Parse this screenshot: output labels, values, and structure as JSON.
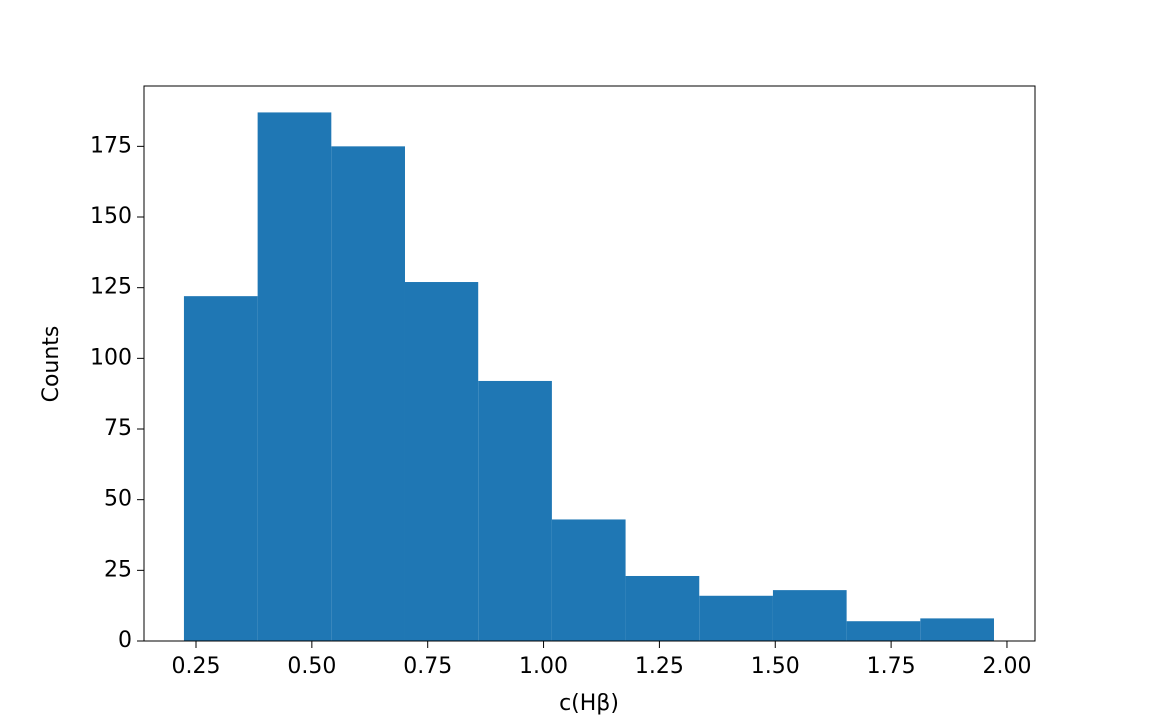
{
  "chart_data": {
    "type": "histogram",
    "bins": [
      0.224,
      0.383,
      0.542,
      0.701,
      0.859,
      1.018,
      1.177,
      1.336,
      1.495,
      1.654,
      1.813,
      1.972
    ],
    "values": [
      122,
      187,
      175,
      127,
      92,
      43,
      23,
      16,
      18,
      7,
      8
    ],
    "color": "#1f77b4",
    "xlabel": "c(Hβ)",
    "ylabel": "Counts",
    "xlim": [
      0.1378,
      2.0605
    ],
    "ylim": [
      0,
      196.35
    ],
    "xticks": [
      {
        "value": 0.25,
        "label": "0.25"
      },
      {
        "value": 0.5,
        "label": "0.50"
      },
      {
        "value": 0.75,
        "label": "0.75"
      },
      {
        "value": 1.0,
        "label": "1.00"
      },
      {
        "value": 1.25,
        "label": "1.25"
      },
      {
        "value": 1.5,
        "label": "1.50"
      },
      {
        "value": 1.75,
        "label": "1.75"
      },
      {
        "value": 2.0,
        "label": "2.00"
      }
    ],
    "yticks": [
      0,
      25,
      50,
      75,
      100,
      125,
      150,
      175
    ]
  }
}
